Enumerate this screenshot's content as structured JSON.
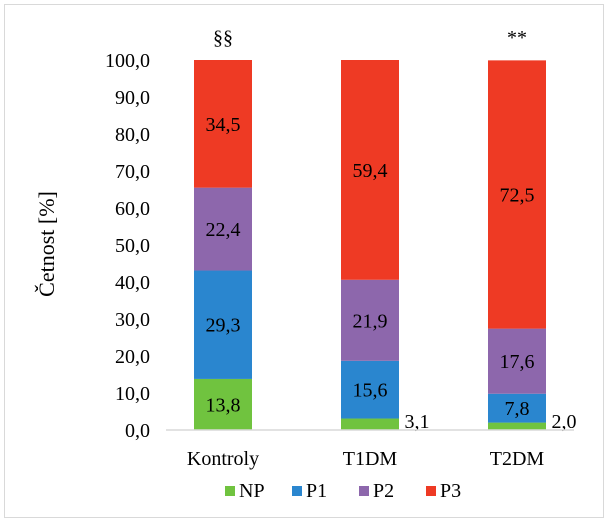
{
  "chart_data": {
    "type": "bar",
    "stacked": true,
    "ylabel": "Četnost [%]",
    "ylim": [
      0,
      100
    ],
    "ytick_step": 10,
    "ytick_labels": [
      "0,0",
      "10,0",
      "20,0",
      "30,0",
      "40,0",
      "50,0",
      "60,0",
      "70,0",
      "80,0",
      "90,0",
      "100,0"
    ],
    "grid": false,
    "legend_position": "bottom",
    "categories": [
      "Kontroly",
      "T1DM",
      "T2DM"
    ],
    "annotations": [
      "§§",
      "",
      "**"
    ],
    "series": [
      {
        "name": "NP",
        "color": "#70c33f",
        "values": [
          13.8,
          3.1,
          2.0
        ],
        "labels": [
          "13,8",
          "3,1",
          "2,0"
        ]
      },
      {
        "name": "P1",
        "color": "#2a86cf",
        "values": [
          29.3,
          15.6,
          7.8
        ],
        "labels": [
          "29,3",
          "15,6",
          "7,8"
        ]
      },
      {
        "name": "P2",
        "color": "#8d67ac",
        "values": [
          22.4,
          21.9,
          17.6
        ],
        "labels": [
          "22,4",
          "21,9",
          "17,6"
        ]
      },
      {
        "name": "P3",
        "color": "#ee3a24",
        "values": [
          34.5,
          59.4,
          72.5
        ],
        "labels": [
          "34,5",
          "59,4",
          "72,5"
        ]
      }
    ]
  }
}
